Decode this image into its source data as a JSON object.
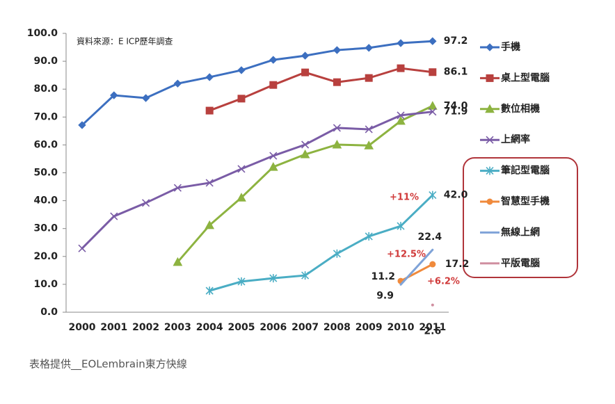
{
  "chart_data": {
    "type": "line",
    "source_note": "資料來源：E ICP歷年調查",
    "caption": "表格提供__EOLembrain東方快線",
    "categories": [
      "2000",
      "2001",
      "2002",
      "2003",
      "2004",
      "2005",
      "2006",
      "2007",
      "2008",
      "2009",
      "2010",
      "2011"
    ],
    "ylim": [
      0,
      100
    ],
    "yticks": [
      {
        "value": 0,
        "label": "0.0"
      },
      {
        "value": 10,
        "label": "10.0"
      },
      {
        "value": 20,
        "label": "20.0"
      },
      {
        "value": 30,
        "label": "30.0"
      },
      {
        "value": 40,
        "label": "40.0"
      },
      {
        "value": 50,
        "label": "50.0"
      },
      {
        "value": 60,
        "label": "60.0"
      },
      {
        "value": 70,
        "label": "70.0"
      },
      {
        "value": 80,
        "label": "80.0"
      },
      {
        "value": 90,
        "label": "90.0"
      },
      {
        "value": 100,
        "label": "100.0"
      }
    ],
    "grid": false,
    "legend": "right",
    "series": [
      {
        "name": "手機",
        "color": "#3c6fc0",
        "marker": "diamond",
        "values": [
          67.1,
          77.8,
          76.8,
          82,
          84.3,
          86.8,
          90.5,
          92,
          94,
          94.8,
          96.5,
          97.2
        ],
        "value_labels": [
          null,
          null,
          null,
          null,
          null,
          null,
          null,
          null,
          null,
          null,
          null,
          "97.2"
        ]
      },
      {
        "name": "桌上型電腦",
        "color": "#b8403e",
        "marker": "square",
        "values": [
          null,
          null,
          null,
          null,
          72.3,
          76.6,
          81.5,
          86,
          82.5,
          84,
          87.5,
          86.1
        ],
        "value_labels": [
          null,
          null,
          null,
          null,
          null,
          null,
          null,
          null,
          null,
          null,
          null,
          "86.1"
        ]
      },
      {
        "name": "數位相機",
        "color": "#8db340",
        "marker": "triangle",
        "values": [
          null,
          null,
          null,
          18,
          31.2,
          41.1,
          52.1,
          56.6,
          60.1,
          59.8,
          68.6,
          74
        ],
        "value_labels": [
          null,
          null,
          null,
          null,
          null,
          null,
          null,
          null,
          null,
          null,
          null,
          "74.0"
        ]
      },
      {
        "name": "上網率",
        "color": "#7a5ca6",
        "marker": "x",
        "values": [
          22.9,
          34.4,
          39.2,
          44.6,
          46.4,
          51.4,
          56.1,
          60.1,
          66.1,
          65.6,
          70.6,
          71.9
        ],
        "value_labels": [
          null,
          null,
          null,
          null,
          null,
          null,
          null,
          null,
          null,
          null,
          null,
          "71.9"
        ]
      },
      {
        "name": "筆記型電腦",
        "color": "#4aadc4",
        "marker": "asterisk",
        "values": [
          null,
          null,
          null,
          null,
          7.7,
          11,
          12.2,
          13.2,
          21,
          27.2,
          30.9,
          42
        ],
        "value_labels": [
          null,
          null,
          null,
          null,
          null,
          null,
          null,
          null,
          null,
          null,
          null,
          "42.0"
        ]
      },
      {
        "name": "智慧型手機",
        "color": "#f08a3c",
        "marker": "circle",
        "values": [
          null,
          null,
          null,
          null,
          null,
          null,
          null,
          null,
          null,
          null,
          11.2,
          17.2
        ],
        "value_labels": [
          null,
          null,
          null,
          null,
          null,
          null,
          null,
          null,
          null,
          null,
          "11.2",
          "17.2"
        ]
      },
      {
        "name": "無線上網",
        "color": "#7fa3d8",
        "marker": "none",
        "values": [
          null,
          null,
          null,
          null,
          null,
          null,
          null,
          null,
          null,
          null,
          9.9,
          22.4
        ],
        "value_labels": [
          null,
          null,
          null,
          null,
          null,
          null,
          null,
          null,
          null,
          null,
          "9.9",
          "22.4"
        ]
      },
      {
        "name": "平版電腦",
        "color": "#d08fa0",
        "marker": "none",
        "values": [
          null,
          null,
          null,
          null,
          null,
          null,
          null,
          null,
          null,
          null,
          null,
          2.6
        ],
        "value_labels": [
          null,
          null,
          null,
          null,
          null,
          null,
          null,
          null,
          null,
          null,
          null,
          "2.6"
        ]
      }
    ],
    "annotations": [
      "+11%",
      "+12.5%",
      "+6.2%"
    ]
  }
}
